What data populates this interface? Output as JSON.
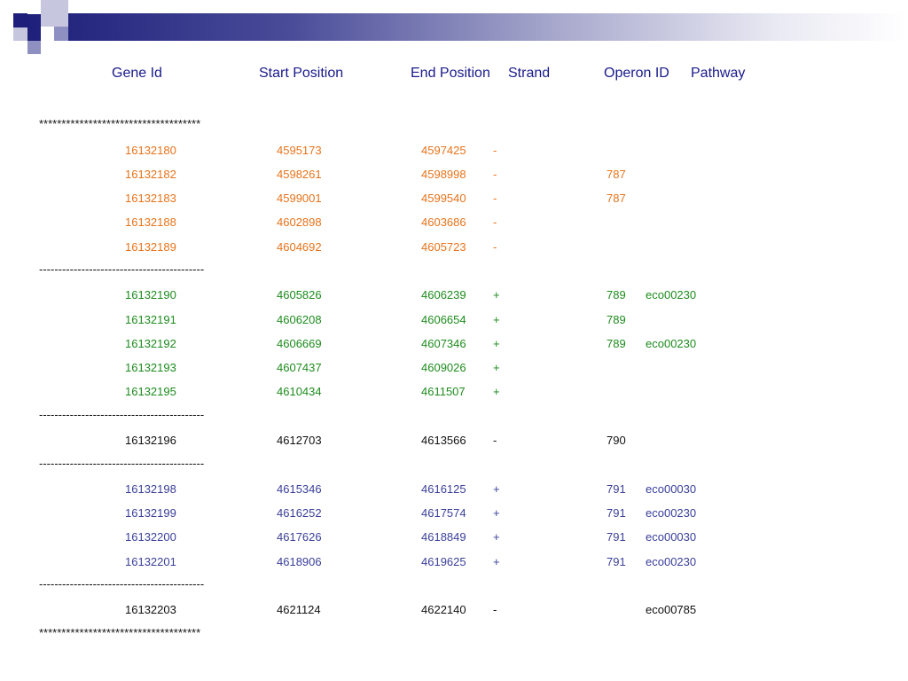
{
  "headers": {
    "gene_id": "Gene Id",
    "start_position": "Start  Position",
    "end_position": "End Position",
    "strand": "Strand",
    "operon_id": "Operon ID",
    "pathway": "Pathway"
  },
  "separators": {
    "stars": "************************************",
    "dashes": "-------------------------------------------"
  },
  "groups": [
    {
      "color": "#e8731a",
      "rows": [
        {
          "gene": "16132180",
          "start": "4595173",
          "end": "4597425",
          "strand": "-",
          "operon": "",
          "pathway": ""
        },
        {
          "gene": "16132182",
          "start": "4598261",
          "end": "4598998",
          "strand": "-",
          "operon": "787",
          "pathway": ""
        },
        {
          "gene": "16132183",
          "start": "4599001",
          "end": "4599540",
          "strand": "-",
          "operon": "787",
          "pathway": ""
        },
        {
          "gene": "16132188",
          "start": "4602898",
          "end": "4603686",
          "strand": "-",
          "operon": "",
          "pathway": ""
        },
        {
          "gene": "16132189",
          "start": "4604692",
          "end": "4605723",
          "strand": "-",
          "operon": "",
          "pathway": ""
        }
      ]
    },
    {
      "color": "#1d8c1d",
      "rows": [
        {
          "gene": "16132190",
          "start": "4605826",
          "end": "4606239",
          "strand": "+",
          "operon": "789",
          "pathway": "eco00230"
        },
        {
          "gene": "16132191",
          "start": "4606208",
          "end": "4606654",
          "strand": "+",
          "operon": "789",
          "pathway": ""
        },
        {
          "gene": "16132192",
          "start": "4606669",
          "end": "4607346",
          "strand": "+",
          "operon": "789",
          "pathway": "eco00230"
        },
        {
          "gene": "16132193",
          "start": "4607437",
          "end": "4609026",
          "strand": "+",
          "operon": "",
          "pathway": ""
        },
        {
          "gene": "16132195",
          "start": "4610434",
          "end": "4611507",
          "strand": "+",
          "operon": "",
          "pathway": ""
        }
      ]
    },
    {
      "color": "#111111",
      "rows": [
        {
          "gene": "16132196",
          "start": "4612703",
          "end": "4613566",
          "strand": "-",
          "operon": "790",
          "pathway": ""
        }
      ]
    },
    {
      "color": "#3a3f9a",
      "rows": [
        {
          "gene": "16132198",
          "start": "4615346",
          "end": "4616125",
          "strand": "+",
          "operon": "791",
          "pathway": "eco00030"
        },
        {
          "gene": "16132199",
          "start": "4616252",
          "end": "4617574",
          "strand": "+",
          "operon": "791",
          "pathway": "eco00230"
        },
        {
          "gene": "16132200",
          "start": "4617626",
          "end": "4618849",
          "strand": "+",
          "operon": "791",
          "pathway": "eco00030"
        },
        {
          "gene": "16132201",
          "start": "4618906",
          "end": "4619625",
          "strand": "+",
          "operon": "791",
          "pathway": "eco00230"
        }
      ]
    },
    {
      "color": "#111111",
      "rows": [
        {
          "gene": "16132203",
          "start": "4621124",
          "end": "4622140",
          "strand": "-",
          "operon": "",
          "pathway": "eco00785"
        }
      ]
    }
  ]
}
